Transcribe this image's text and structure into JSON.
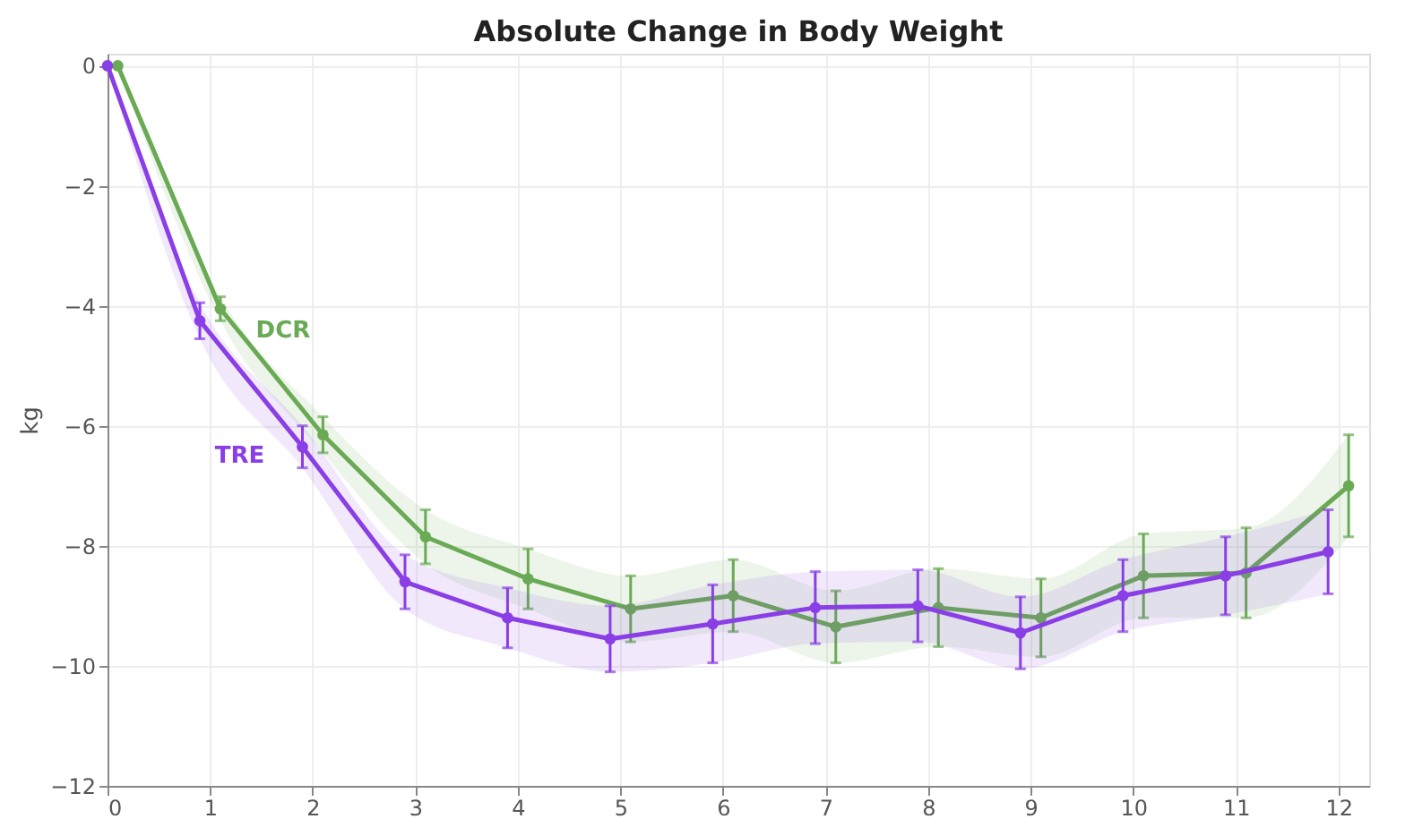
{
  "chart_data": {
    "type": "line",
    "title": "Absolute Change in Body Weight",
    "ylabel": "kg",
    "xlim": [
      0,
      12.3
    ],
    "xticks": [
      0,
      1,
      2,
      3,
      4,
      5,
      6,
      7,
      8,
      9,
      10,
      11,
      12
    ],
    "ylim": [
      -12,
      0.2
    ],
    "yticks": [
      -12,
      -10,
      -8,
      -6,
      -4,
      -2,
      0
    ],
    "grid": true,
    "marker": "circle",
    "line_style": "solid",
    "series": [
      {
        "name": "DCR",
        "color": "#6aaa55",
        "x": [
          0.1,
          1.1,
          2.1,
          3.1,
          4.1,
          5.1,
          6.1,
          7.1,
          8.1,
          9.1,
          10.1,
          11.1,
          12.1
        ],
        "values": [
          0,
          -4.05,
          -6.15,
          -7.85,
          -8.55,
          -9.05,
          -8.83,
          -9.35,
          -9.03,
          -9.2,
          -8.5,
          -8.45,
          -7.0
        ],
        "errors": [
          null,
          0.2,
          0.3,
          0.45,
          0.5,
          0.55,
          0.6,
          0.6,
          0.65,
          0.65,
          0.7,
          0.75,
          0.85
        ],
        "lower": [
          0,
          -4.25,
          -6.45,
          -8.3,
          -9.05,
          -9.6,
          -9.43,
          -9.95,
          -9.68,
          -9.85,
          -9.2,
          -9.2,
          -7.85
        ],
        "upper": [
          0,
          -3.85,
          -5.85,
          -7.4,
          -8.05,
          -8.5,
          -8.23,
          -8.75,
          -8.38,
          -8.55,
          -7.8,
          -7.7,
          -6.15
        ]
      },
      {
        "name": "TRE",
        "color": "#8a3ee6",
        "x": [
          0,
          0.9,
          1.9,
          2.9,
          3.9,
          4.9,
          5.9,
          6.9,
          7.9,
          8.9,
          9.9,
          10.9,
          11.9
        ],
        "values": [
          0,
          -4.25,
          -6.35,
          -8.6,
          -9.2,
          -9.55,
          -9.3,
          -9.03,
          -9.0,
          -9.45,
          -8.83,
          -8.5,
          -8.1
        ],
        "errors": [
          null,
          0.3,
          0.35,
          0.45,
          0.5,
          0.55,
          0.65,
          0.6,
          0.6,
          0.6,
          0.6,
          0.65,
          0.7
        ],
        "lower": [
          0,
          -4.55,
          -6.7,
          -9.05,
          -9.7,
          -10.1,
          -9.95,
          -9.63,
          -9.6,
          -10.05,
          -9.43,
          -9.15,
          -8.8
        ],
        "upper": [
          0,
          -3.95,
          -6.0,
          -8.15,
          -8.7,
          -9.0,
          -8.65,
          -8.43,
          -8.4,
          -8.85,
          -8.23,
          -7.85,
          -7.4
        ]
      }
    ]
  }
}
